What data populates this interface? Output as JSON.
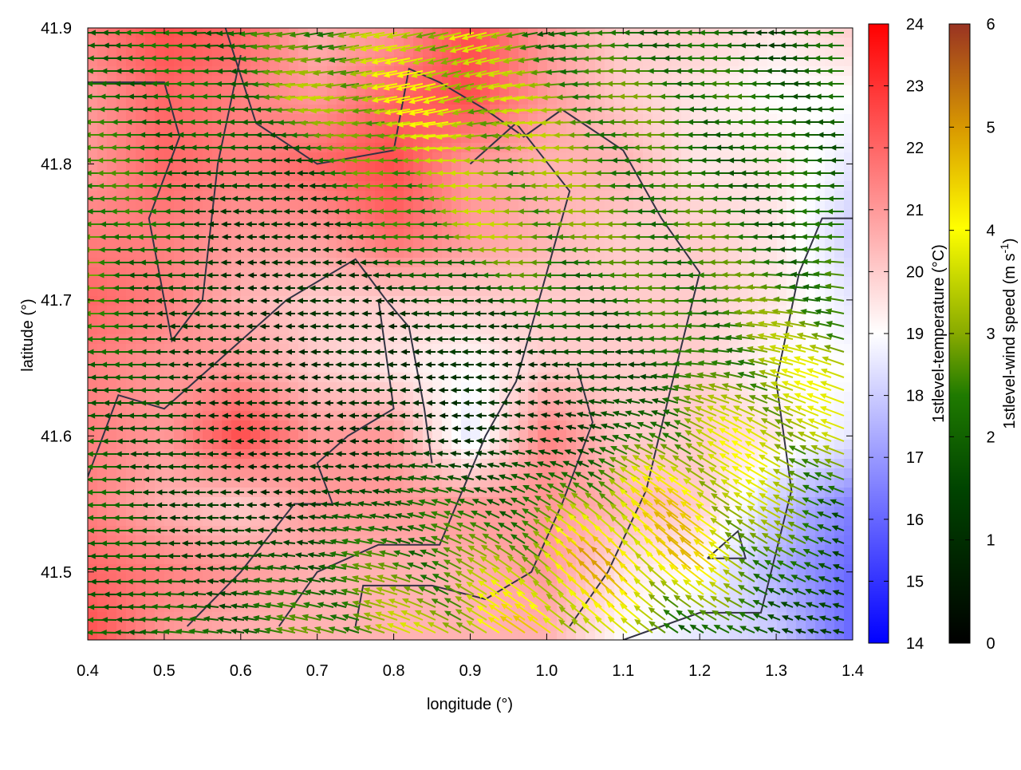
{
  "chart_data": {
    "type": "heatmap",
    "xlabel": "longitude (°)",
    "ylabel": "latitude (°)",
    "xlim": [
      0.4,
      1.4
    ],
    "ylim": [
      41.45,
      41.9
    ],
    "xticks": [
      "0.4",
      "0.5",
      "0.6",
      "0.7",
      "0.8",
      "0.9",
      "1.0",
      "1.1",
      "1.2",
      "1.3",
      "1.4"
    ],
    "yticks": [
      "41.5",
      "41.6",
      "41.7",
      "41.8",
      "41.9"
    ],
    "grid": false,
    "grid_lon": [
      0.4,
      0.5,
      0.6,
      0.7,
      0.8,
      0.9,
      1.0,
      1.1,
      1.2,
      1.3,
      1.4
    ],
    "grid_lat": [
      41.9,
      41.85,
      41.8,
      41.75,
      41.7,
      41.65,
      41.6,
      41.55,
      41.5,
      41.45
    ],
    "temperature": {
      "label": "1stlevel-temperature (°C)",
      "range": [
        14,
        24
      ],
      "ticks": [
        "14",
        "15",
        "16",
        "17",
        "18",
        "19",
        "20",
        "21",
        "22",
        "23",
        "24"
      ],
      "colors": {
        "low": "#0000ff",
        "mid": "#ffffff",
        "high": "#ff0000"
      },
      "values": [
        [
          21.5,
          22.5,
          22,
          20.5,
          21,
          22.5,
          21,
          20,
          20,
          19.5,
          20
        ],
        [
          21,
          22,
          21.5,
          21,
          22,
          22.5,
          21,
          20,
          19.5,
          19,
          19
        ],
        [
          21,
          22,
          21.5,
          22,
          22.5,
          21,
          20.5,
          20.5,
          19.5,
          19.5,
          18.5
        ],
        [
          21.5,
          21.5,
          21,
          21,
          22,
          21,
          20.5,
          20,
          20,
          19.5,
          18
        ],
        [
          22,
          21.5,
          20.5,
          20,
          20,
          20,
          20,
          20,
          20,
          19.5,
          18.5
        ],
        [
          21.5,
          21,
          21,
          20,
          19.5,
          19,
          20,
          20,
          20,
          19,
          19
        ],
        [
          21.5,
          21,
          22.5,
          21,
          21,
          18.5,
          21.5,
          20,
          20,
          19.5,
          18.5
        ],
        [
          21.5,
          20.5,
          20,
          21,
          21,
          21,
          21,
          20.5,
          20,
          18,
          16.5
        ],
        [
          22,
          21.5,
          21,
          20.5,
          20.5,
          20.5,
          21,
          19.5,
          19,
          17.5,
          16
        ],
        [
          22.5,
          21,
          20.5,
          20.5,
          20.5,
          20.5,
          20.5,
          19,
          18.5,
          18,
          16
        ]
      ]
    },
    "wind": {
      "label": "1stlevel-wind speed (m s",
      "label_sup": "-1",
      "label_end": ")",
      "range": [
        0,
        6
      ],
      "ticks": [
        "0",
        "1",
        "2",
        "3",
        "4",
        "5",
        "6"
      ],
      "colors": [
        "#000000",
        "#004400",
        "#006600",
        "#88aa00",
        "#ffff00",
        "#dd9900",
        "#993322"
      ],
      "speed": [
        [
          2,
          2,
          2,
          2.5,
          3,
          3.5,
          2,
          2,
          2,
          1.5,
          2
        ],
        [
          2,
          2,
          2,
          3,
          3.5,
          3.5,
          3,
          2.5,
          2.5,
          2,
          2
        ],
        [
          2.5,
          2,
          1.5,
          1.5,
          3,
          3,
          3,
          2.5,
          2,
          2,
          2
        ],
        [
          3,
          2,
          1,
          1,
          2,
          3,
          3,
          2.5,
          2.5,
          2,
          2
        ],
        [
          2.5,
          1.5,
          1,
          1,
          1,
          1.5,
          2,
          2,
          2.5,
          2.5,
          2.5
        ],
        [
          2,
          1.5,
          1,
          1,
          1,
          1,
          1,
          1.5,
          2,
          3,
          3.5
        ],
        [
          2,
          1.5,
          1,
          1,
          1,
          1,
          1,
          1.5,
          3,
          3.5,
          3
        ],
        [
          2,
          1.5,
          1,
          1,
          2,
          2,
          2,
          3.5,
          4,
          3,
          2
        ],
        [
          2,
          1.5,
          1.5,
          2,
          2.5,
          2.5,
          3.5,
          4.5,
          4,
          2.5,
          1
        ],
        [
          2,
          2,
          2,
          2.5,
          3,
          3.5,
          4,
          3,
          2,
          1.5,
          1
        ]
      ],
      "direction_deg": [
        [
          180,
          180,
          185,
          190,
          190,
          195,
          190,
          180,
          180,
          180,
          180
        ],
        [
          180,
          180,
          180,
          185,
          190,
          195,
          185,
          180,
          180,
          180,
          180
        ],
        [
          180,
          180,
          180,
          180,
          180,
          180,
          180,
          180,
          180,
          180,
          180
        ],
        [
          180,
          180,
          180,
          180,
          180,
          180,
          180,
          180,
          180,
          180,
          180
        ],
        [
          180,
          180,
          180,
          180,
          180,
          180,
          180,
          180,
          180,
          175,
          170
        ],
        [
          180,
          180,
          180,
          180,
          180,
          180,
          180,
          180,
          175,
          165,
          160
        ],
        [
          180,
          180,
          180,
          180,
          180,
          180,
          170,
          160,
          150,
          150,
          160
        ],
        [
          180,
          180,
          180,
          175,
          170,
          160,
          150,
          140,
          145,
          150,
          160
        ],
        [
          180,
          180,
          175,
          170,
          165,
          150,
          140,
          135,
          140,
          150,
          160
        ],
        [
          180,
          175,
          170,
          165,
          160,
          150,
          145,
          140,
          150,
          160,
          170
        ]
      ]
    },
    "boundaries": [
      [
        [
          0.4,
          41.86
        ],
        [
          0.5,
          41.86
        ],
        [
          0.52,
          41.82
        ],
        [
          0.48,
          41.76
        ],
        [
          0.51,
          41.67
        ],
        [
          0.55,
          41.7
        ],
        [
          0.57,
          41.8
        ],
        [
          0.6,
          41.88
        ]
      ],
      [
        [
          0.4,
          41.57
        ],
        [
          0.44,
          41.63
        ],
        [
          0.5,
          41.62
        ],
        [
          0.58,
          41.66
        ],
        [
          0.66,
          41.7
        ],
        [
          0.75,
          41.73
        ],
        [
          0.79,
          41.7
        ],
        [
          0.82,
          41.68
        ],
        [
          0.84,
          41.62
        ],
        [
          0.85,
          41.58
        ]
      ],
      [
        [
          0.58,
          41.9
        ],
        [
          0.62,
          41.83
        ],
        [
          0.7,
          41.8
        ],
        [
          0.8,
          41.81
        ],
        [
          0.82,
          41.87
        ],
        [
          0.86,
          41.86
        ],
        [
          0.92,
          41.84
        ],
        [
          0.97,
          41.82
        ],
        [
          1.02,
          41.84
        ],
        [
          1.1,
          41.81
        ],
        [
          1.15,
          41.76
        ],
        [
          1.2,
          41.72
        ],
        [
          1.16,
          41.63
        ],
        [
          1.13,
          41.56
        ],
        [
          1.08,
          41.5
        ],
        [
          1.03,
          41.46
        ]
      ],
      [
        [
          0.78,
          41.7
        ],
        [
          0.8,
          41.62
        ],
        [
          0.74,
          41.6
        ],
        [
          0.7,
          41.58
        ],
        [
          0.72,
          41.55
        ],
        [
          0.67,
          41.55
        ],
        [
          0.6,
          41.5
        ],
        [
          0.53,
          41.46
        ]
      ],
      [
        [
          0.65,
          41.46
        ],
        [
          0.7,
          41.5
        ],
        [
          0.78,
          41.52
        ],
        [
          0.86,
          41.52
        ],
        [
          0.92,
          41.6
        ],
        [
          0.96,
          41.64
        ],
        [
          0.99,
          41.7
        ],
        [
          1.03,
          41.78
        ],
        [
          0.96,
          41.83
        ],
        [
          0.9,
          41.8
        ]
      ],
      [
        [
          1.1,
          41.45
        ],
        [
          1.2,
          41.47
        ],
        [
          1.28,
          41.47
        ],
        [
          1.32,
          41.56
        ],
        [
          1.3,
          41.64
        ],
        [
          1.33,
          41.72
        ],
        [
          1.36,
          41.76
        ],
        [
          1.4,
          41.76
        ]
      ],
      [
        [
          0.75,
          41.46
        ],
        [
          0.76,
          41.49
        ],
        [
          0.85,
          41.49
        ],
        [
          0.92,
          41.48
        ],
        [
          0.98,
          41.5
        ],
        [
          1.02,
          41.55
        ],
        [
          1.06,
          41.61
        ],
        [
          1.04,
          41.65
        ]
      ],
      [
        [
          1.21,
          41.51
        ],
        [
          1.25,
          41.53
        ],
        [
          1.26,
          41.51
        ],
        [
          1.21,
          41.51
        ]
      ]
    ]
  }
}
